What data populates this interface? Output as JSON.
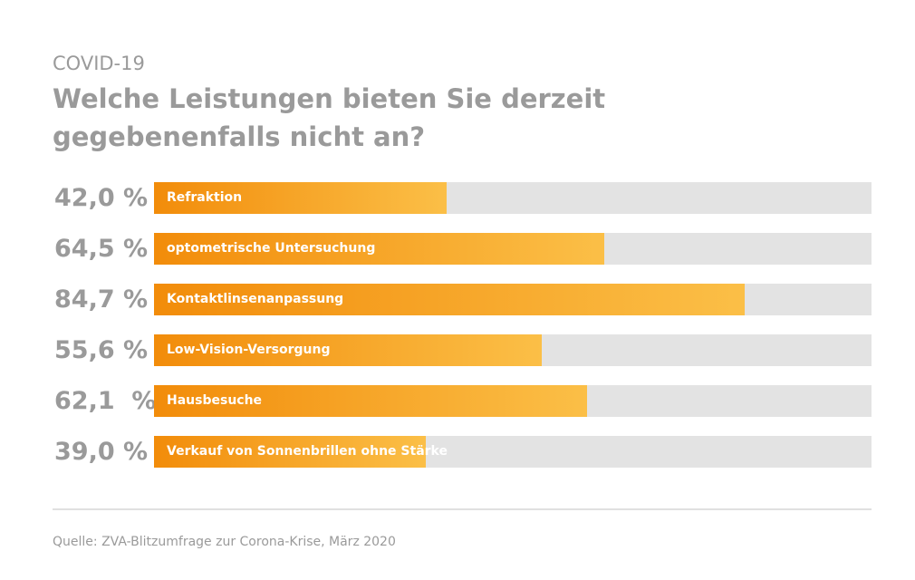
{
  "kicker": "COVID-19",
  "title": "Welche Leistungen bieten Sie derzeit gegebenenfalls nicht an?",
  "source": "Quelle: ZVA-Blitzumfrage zur Corona-Krise, März 2020",
  "colors": {
    "bar_start": "#f28c0a",
    "bar_end": "#fbbf47",
    "track": "#e3e3e3",
    "text": "#9a9a9a"
  },
  "chart_data": {
    "type": "bar",
    "orientation": "horizontal",
    "title": "Welche Leistungen bieten Sie derzeit gegebenenfalls nicht an?",
    "categories": [
      "Refraktion",
      "optometrische Untersuchung",
      "Kontaktlinsenanpassung",
      "Low-Vision-Versorgung",
      "Hausbesuche",
      "Verkauf von Sonnenbrillen ohne Stärke"
    ],
    "values": [
      42.0,
      64.5,
      84.7,
      55.6,
      62.1,
      39.0
    ],
    "value_labels": [
      "42,0 %",
      "64,5 %",
      "84,7 %",
      "55,6 %",
      "62,1  %",
      "39,0 %"
    ],
    "unit": "%",
    "xlim": [
      0,
      100
    ],
    "grid": false
  }
}
